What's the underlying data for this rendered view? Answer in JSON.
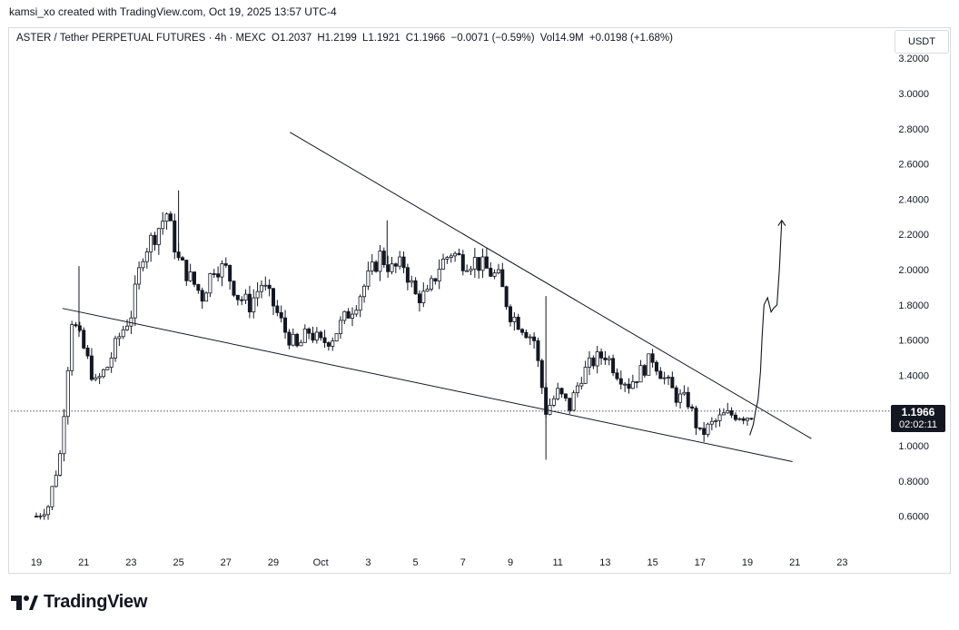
{
  "header": {
    "credit": "kamsi_xo created with TradingView.com, Oct 19, 2025 13:57 UTC-4",
    "symbol": "ASTER / Tether PERPETUAL FUTURES · 4h · MEXC",
    "open": "O1.2037",
    "high": "H1.2199",
    "low": "L1.1921",
    "close": "C1.1966",
    "change": "−0.0071 (−0.59%)",
    "volume": "Vol14.9M",
    "volume_change": "+0.0198 (+1.68%)",
    "currency": "USDT"
  },
  "price_tag": {
    "price": "1.1966",
    "countdown": "02:02:11"
  },
  "logo": {
    "text": "TradingView"
  },
  "chart_data": {
    "type": "candlestick",
    "y_ticks": [
      "3.2000",
      "3.0000",
      "2.8000",
      "2.6000",
      "2.4000",
      "2.2000",
      "2.0000",
      "1.8000",
      "1.6000",
      "1.4000",
      "1.2000",
      "1.0000",
      "0.8000",
      "0.6000"
    ],
    "ylim": [
      0.45,
      3.25
    ],
    "x_ticks": [
      {
        "label": "19",
        "day": 0
      },
      {
        "label": "21",
        "day": 2
      },
      {
        "label": "23",
        "day": 4
      },
      {
        "label": "25",
        "day": 6
      },
      {
        "label": "27",
        "day": 8
      },
      {
        "label": "29",
        "day": 10
      },
      {
        "label": "Oct",
        "day": 12
      },
      {
        "label": "3",
        "day": 14
      },
      {
        "label": "5",
        "day": 16
      },
      {
        "label": "7",
        "day": 18
      },
      {
        "label": "9",
        "day": 20
      },
      {
        "label": "11",
        "day": 22
      },
      {
        "label": "13",
        "day": 24
      },
      {
        "label": "15",
        "day": 26
      },
      {
        "label": "17",
        "day": 28
      },
      {
        "label": "19",
        "day": 30
      },
      {
        "label": "21",
        "day": 32
      },
      {
        "label": "23",
        "day": 34
      }
    ],
    "last_price": 1.1966,
    "up_color": "#131722",
    "down_color": "#131722",
    "daily_path": [
      [
        0.0,
        0.6
      ],
      [
        0.5,
        0.66
      ],
      [
        1.0,
        0.95
      ],
      [
        1.5,
        1.72
      ],
      [
        2.0,
        1.55
      ],
      [
        2.5,
        1.35
      ],
      [
        3.0,
        1.45
      ],
      [
        3.5,
        1.62
      ],
      [
        4.0,
        1.75
      ],
      [
        4.5,
        2.1
      ],
      [
        5.0,
        2.2
      ],
      [
        5.5,
        2.32
      ],
      [
        6.0,
        2.05
      ],
      [
        6.5,
        1.95
      ],
      [
        7.0,
        1.85
      ],
      [
        7.5,
        2.02
      ],
      [
        8.0,
        2.0
      ],
      [
        8.5,
        1.85
      ],
      [
        9.0,
        1.8
      ],
      [
        9.5,
        1.92
      ],
      [
        10.0,
        1.8
      ],
      [
        10.5,
        1.65
      ],
      [
        11.0,
        1.55
      ],
      [
        11.5,
        1.65
      ],
      [
        12.0,
        1.58
      ],
      [
        12.5,
        1.62
      ],
      [
        13.0,
        1.72
      ],
      [
        13.5,
        1.82
      ],
      [
        14.0,
        1.95
      ],
      [
        14.5,
        2.08
      ],
      [
        15.0,
        2.0
      ],
      [
        15.5,
        2.03
      ],
      [
        16.0,
        1.85
      ],
      [
        16.5,
        1.85
      ],
      [
        17.0,
        2.02
      ],
      [
        17.5,
        2.1
      ],
      [
        18.0,
        2.05
      ],
      [
        18.5,
        2.05
      ],
      [
        19.0,
        2.0
      ],
      [
        19.5,
        1.95
      ],
      [
        20.0,
        1.75
      ],
      [
        20.5,
        1.68
      ],
      [
        21.0,
        1.6
      ],
      [
        21.5,
        1.2
      ],
      [
        22.0,
        1.3
      ],
      [
        22.5,
        1.22
      ],
      [
        23.0,
        1.4
      ],
      [
        23.5,
        1.48
      ],
      [
        24.0,
        1.52
      ],
      [
        24.5,
        1.42
      ],
      [
        25.0,
        1.35
      ],
      [
        25.5,
        1.42
      ],
      [
        26.0,
        1.5
      ],
      [
        26.5,
        1.38
      ],
      [
        27.0,
        1.28
      ],
      [
        27.5,
        1.25
      ],
      [
        28.0,
        1.06
      ],
      [
        28.5,
        1.12
      ],
      [
        29.0,
        1.17
      ],
      [
        29.5,
        1.18
      ],
      [
        30.0,
        1.17
      ],
      [
        30.3,
        1.19
      ]
    ],
    "wicks_extremes": [
      {
        "day": 6.0,
        "high": 2.45
      },
      {
        "day": 21.5,
        "high": 1.85,
        "low": 0.92
      },
      {
        "day": 14.8,
        "high": 2.28
      },
      {
        "day": 1.8,
        "high": 2.02
      }
    ],
    "trendlines": [
      {
        "name": "upper",
        "from": {
          "day": 10.7,
          "price": 2.78
        },
        "to": {
          "day": 32.7,
          "price": 1.04
        }
      },
      {
        "name": "lower",
        "from": {
          "day": 1.1,
          "price": 1.78
        },
        "to": {
          "day": 31.9,
          "price": 0.91
        }
      }
    ],
    "projection": [
      [
        30.1,
        1.06
      ],
      [
        30.25,
        1.12
      ],
      [
        30.35,
        1.2
      ],
      [
        30.45,
        1.26
      ],
      [
        30.55,
        1.42
      ],
      [
        30.62,
        1.62
      ],
      [
        30.7,
        1.8
      ],
      [
        30.85,
        1.84
      ],
      [
        31.0,
        1.76
      ],
      [
        31.1,
        1.78
      ],
      [
        31.25,
        1.8
      ],
      [
        31.35,
        2.0
      ],
      [
        31.45,
        2.28
      ]
    ],
    "grid": false,
    "legend": "none"
  }
}
